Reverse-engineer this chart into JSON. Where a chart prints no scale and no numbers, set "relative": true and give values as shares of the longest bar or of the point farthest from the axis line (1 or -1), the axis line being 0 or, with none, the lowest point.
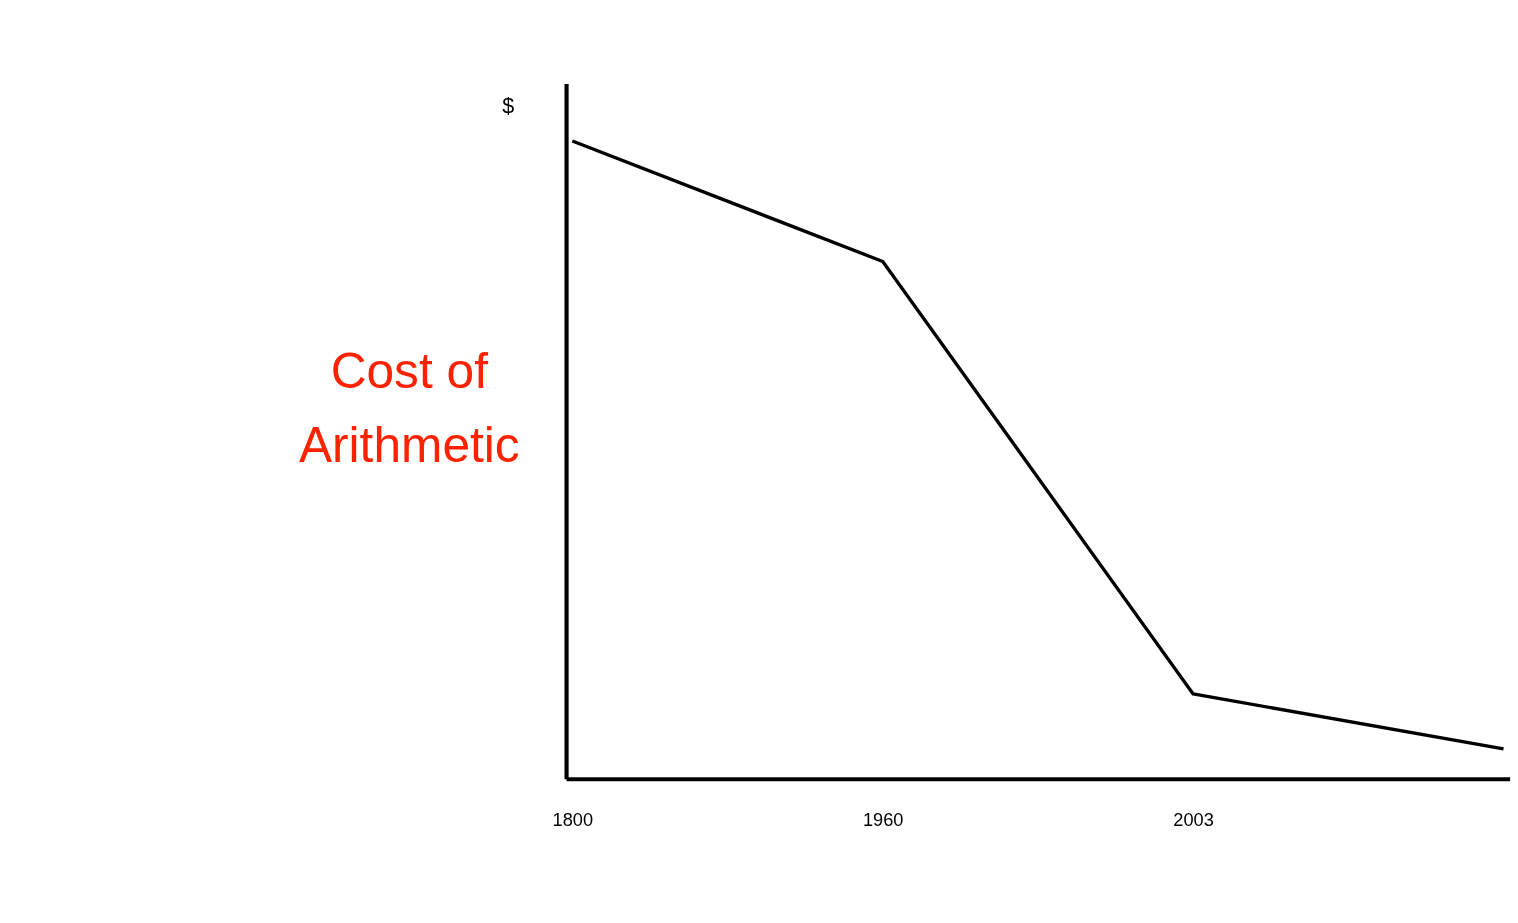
{
  "chart_data": {
    "type": "line",
    "relative": true,
    "ylabel": "Cost of Arithmetic",
    "annotations": [
      "$"
    ],
    "categories": [
      "1800",
      "1960",
      "2003",
      null
    ],
    "series": [
      {
        "color": "#000000",
        "values": [
          1,
          0.811,
          0.133,
          0.047
        ]
      }
    ],
    "grid": false,
    "legend": false,
    "marker": "none",
    "line_style": "solid"
  }
}
